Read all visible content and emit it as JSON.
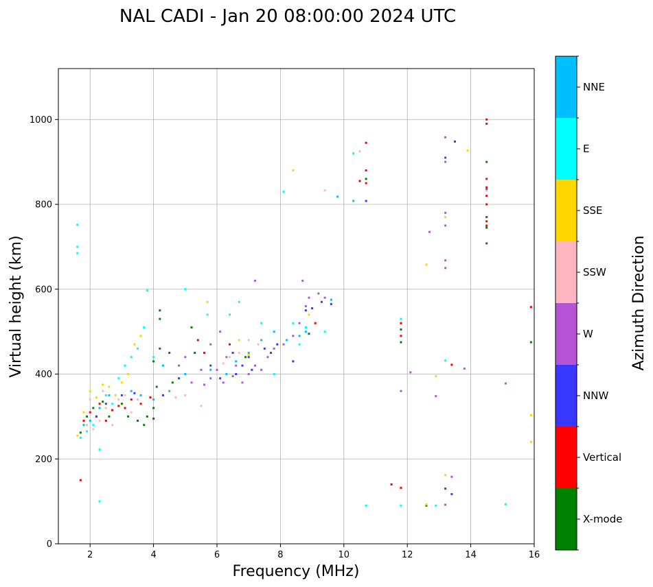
{
  "chart_data": {
    "type": "scatter",
    "title": "NAL CADI - Jan 20 08:00:00 2024 UTC",
    "xlabel": "Frequency (MHz)",
    "ylabel": "Virtual height (km)",
    "xlim": [
      1,
      16
    ],
    "ylim": [
      0,
      1120
    ],
    "xticks": [
      2,
      4,
      6,
      8,
      10,
      12,
      14,
      16
    ],
    "yticks": [
      0,
      200,
      400,
      600,
      800,
      1000
    ],
    "grid": true,
    "colorbar": {
      "label": "Azimuth Direction",
      "categories": [
        "X-mode",
        "Vertical",
        "NNW",
        "W",
        "SSW",
        "SSE",
        "E",
        "NNE"
      ],
      "colors": [
        "#008000",
        "#ff0000",
        "#3838ff",
        "#b455d6",
        "#ffb6c1",
        "#ffd700",
        "#00ffff",
        "#00bfff"
      ]
    },
    "series": [
      {
        "name": "X-mode",
        "points": [
          [
            1.7,
            262
          ],
          [
            1.9,
            300
          ],
          [
            2.1,
            320
          ],
          [
            2.4,
            335
          ],
          [
            2.6,
            300
          ],
          [
            3.0,
            330
          ],
          [
            3.2,
            300
          ],
          [
            3.5,
            290
          ],
          [
            3.7,
            280
          ],
          [
            3.8,
            300
          ],
          [
            4.0,
            295
          ],
          [
            4.0,
            320
          ],
          [
            4.1,
            370
          ],
          [
            4.0,
            430
          ],
          [
            4.2,
            460
          ],
          [
            4.2,
            530
          ],
          [
            4.2,
            550
          ],
          [
            4.5,
            450
          ],
          [
            4.6,
            380
          ],
          [
            5.2,
            510
          ],
          [
            5.3,
            450
          ],
          [
            6.9,
            440
          ],
          [
            8.9,
            495
          ],
          [
            11.8,
            505
          ],
          [
            11.8,
            475
          ],
          [
            14.5,
            900
          ],
          [
            14.5,
            770
          ],
          [
            14.5,
            745
          ],
          [
            14.5,
            708
          ],
          [
            12.6,
            90
          ],
          [
            15.9,
            475
          ],
          [
            10.7,
            860
          ]
        ]
      },
      {
        "name": "Vertical",
        "points": [
          [
            1.7,
            150
          ],
          [
            1.8,
            290
          ],
          [
            2.0,
            310
          ],
          [
            2.2,
            300
          ],
          [
            2.3,
            330
          ],
          [
            2.5,
            290
          ],
          [
            2.7,
            315
          ],
          [
            2.9,
            325
          ],
          [
            3.1,
            320
          ],
          [
            3.3,
            340
          ],
          [
            3.6,
            330
          ],
          [
            3.9,
            345
          ],
          [
            5.4,
            480
          ],
          [
            5.6,
            450
          ],
          [
            6.4,
            470
          ],
          [
            9.1,
            520
          ],
          [
            10.5,
            855
          ],
          [
            10.7,
            945
          ],
          [
            10.7,
            880
          ],
          [
            10.7,
            850
          ],
          [
            11.5,
            140
          ],
          [
            11.8,
            132
          ],
          [
            11.8,
            520
          ],
          [
            11.8,
            490
          ],
          [
            13.4,
            422
          ],
          [
            14.5,
            990
          ],
          [
            14.5,
            1000
          ],
          [
            14.5,
            860
          ],
          [
            14.5,
            840
          ],
          [
            14.5,
            820
          ],
          [
            14.5,
            800
          ],
          [
            14.5,
            760
          ],
          [
            14.5,
            750
          ],
          [
            15.9,
            558
          ]
        ]
      },
      {
        "name": "NNW",
        "points": [
          [
            2.2,
            300
          ],
          [
            2.5,
            330
          ],
          [
            3.0,
            350
          ],
          [
            3.4,
            355
          ],
          [
            4.3,
            350
          ],
          [
            4.8,
            390
          ],
          [
            5.8,
            420
          ],
          [
            6.1,
            390
          ],
          [
            6.6,
            400
          ],
          [
            6.8,
            420
          ],
          [
            7.0,
            440
          ],
          [
            7.5,
            460
          ],
          [
            7.7,
            450
          ],
          [
            7.9,
            470
          ],
          [
            8.4,
            430
          ],
          [
            8.8,
            550
          ],
          [
            9.0,
            555
          ],
          [
            9.3,
            570
          ],
          [
            9.6,
            565
          ],
          [
            10.7,
            808
          ],
          [
            13.2,
            910
          ],
          [
            13.5,
            948
          ],
          [
            13.2,
            130
          ],
          [
            13.4,
            117
          ],
          [
            14.5,
            835
          ],
          [
            7.1,
            410
          ],
          [
            6.5,
            450
          ]
        ]
      },
      {
        "name": "W",
        "points": [
          [
            5.2,
            380
          ],
          [
            5.6,
            375
          ],
          [
            5.8,
            390
          ],
          [
            6.0,
            410
          ],
          [
            6.2,
            380
          ],
          [
            6.5,
            395
          ],
          [
            6.8,
            380
          ],
          [
            7.0,
            400
          ],
          [
            7.2,
            420
          ],
          [
            7.4,
            410
          ],
          [
            7.6,
            440
          ],
          [
            7.8,
            460
          ],
          [
            8.1,
            470
          ],
          [
            8.4,
            490
          ],
          [
            8.6,
            520
          ],
          [
            8.8,
            560
          ],
          [
            8.9,
            580
          ],
          [
            9.2,
            590
          ],
          [
            9.4,
            580
          ],
          [
            8.7,
            620
          ],
          [
            7.2,
            620
          ],
          [
            6.1,
            500
          ],
          [
            5.8,
            470
          ],
          [
            5.0,
            440
          ],
          [
            4.8,
            420
          ],
          [
            5.5,
            410
          ],
          [
            12.1,
            404
          ],
          [
            11.8,
            360
          ],
          [
            12.9,
            348
          ],
          [
            13.2,
            958
          ],
          [
            13.2,
            900
          ],
          [
            13.2,
            780
          ],
          [
            13.2,
            750
          ],
          [
            13.2,
            668
          ],
          [
            13.2,
            650
          ],
          [
            12.7,
            735
          ],
          [
            15.1,
            378
          ],
          [
            13.4,
            158
          ],
          [
            13.2,
            92
          ],
          [
            13.8,
            413
          ],
          [
            6.6,
            420
          ],
          [
            6.3,
            440
          ]
        ]
      },
      {
        "name": "SSW",
        "points": [
          [
            1.9,
            280
          ],
          [
            2.1,
            270
          ],
          [
            2.3,
            290
          ],
          [
            2.5,
            320
          ],
          [
            2.7,
            280
          ],
          [
            2.9,
            340
          ],
          [
            3.1,
            350
          ],
          [
            3.3,
            310
          ],
          [
            3.5,
            340
          ],
          [
            4.7,
            345
          ],
          [
            5.0,
            350
          ],
          [
            5.5,
            325
          ],
          [
            6.2,
            425
          ],
          [
            6.4,
            440
          ],
          [
            6.7,
            450
          ],
          [
            7.0,
            480
          ],
          [
            7.3,
            470
          ],
          [
            10.5,
            925
          ],
          [
            9.4,
            833
          ],
          [
            14.5,
            832
          ],
          [
            2.0,
            340
          ],
          [
            2.4,
            360
          ]
        ]
      },
      {
        "name": "SSE",
        "points": [
          [
            1.6,
            255
          ],
          [
            1.8,
            310
          ],
          [
            2.0,
            360
          ],
          [
            2.2,
            345
          ],
          [
            2.4,
            375
          ],
          [
            2.6,
            370
          ],
          [
            2.8,
            350
          ],
          [
            3.0,
            380
          ],
          [
            3.2,
            400
          ],
          [
            3.4,
            470
          ],
          [
            3.6,
            490
          ],
          [
            5.7,
            570
          ],
          [
            6.7,
            480
          ],
          [
            7.0,
            445
          ],
          [
            8.4,
            880
          ],
          [
            12.6,
            658
          ],
          [
            12.9,
            395
          ],
          [
            13.2,
            770
          ],
          [
            13.9,
            927
          ],
          [
            13.2,
            162
          ],
          [
            12.6,
            93
          ],
          [
            15.9,
            303
          ],
          [
            15.9,
            240
          ],
          [
            8.9,
            540
          ]
        ]
      },
      {
        "name": "E",
        "points": [
          [
            1.6,
            752
          ],
          [
            1.6,
            700
          ],
          [
            1.6,
            685
          ],
          [
            1.7,
            250
          ],
          [
            1.9,
            265
          ],
          [
            2.1,
            280
          ],
          [
            2.3,
            222
          ],
          [
            2.3,
            100
          ],
          [
            2.5,
            350
          ],
          [
            2.7,
            330
          ],
          [
            2.9,
            390
          ],
          [
            3.1,
            420
          ],
          [
            3.3,
            440
          ],
          [
            3.5,
            460
          ],
          [
            3.7,
            510
          ],
          [
            3.8,
            597
          ],
          [
            5.0,
            600
          ],
          [
            5.7,
            540
          ],
          [
            6.7,
            570
          ],
          [
            7.4,
            520
          ],
          [
            8.1,
            830
          ],
          [
            8.4,
            520
          ],
          [
            8.6,
            470
          ],
          [
            8.8,
            510
          ],
          [
            9.4,
            500
          ],
          [
            10.3,
            920
          ],
          [
            10.7,
            90
          ],
          [
            11.8,
            90
          ],
          [
            11.8,
            530
          ],
          [
            12.9,
            90
          ],
          [
            13.2,
            432
          ],
          [
            15.1,
            93
          ],
          [
            4.0,
            440
          ],
          [
            6.4,
            540
          ],
          [
            7.8,
            400
          ]
        ]
      },
      {
        "name": "NNE",
        "points": [
          [
            1.8,
            280
          ],
          [
            2.0,
            290
          ],
          [
            2.3,
            320
          ],
          [
            2.6,
            350
          ],
          [
            3.3,
            360
          ],
          [
            3.6,
            350
          ],
          [
            4.0,
            340
          ],
          [
            4.5,
            360
          ],
          [
            5.0,
            400
          ],
          [
            5.8,
            410
          ],
          [
            6.3,
            400
          ],
          [
            6.6,
            430
          ],
          [
            7.0,
            450
          ],
          [
            7.4,
            480
          ],
          [
            7.8,
            500
          ],
          [
            8.2,
            480
          ],
          [
            8.6,
            490
          ],
          [
            8.8,
            500
          ],
          [
            9.6,
            575
          ],
          [
            9.8,
            818
          ],
          [
            10.3,
            808
          ],
          [
            4.3,
            420
          ]
        ]
      }
    ]
  }
}
